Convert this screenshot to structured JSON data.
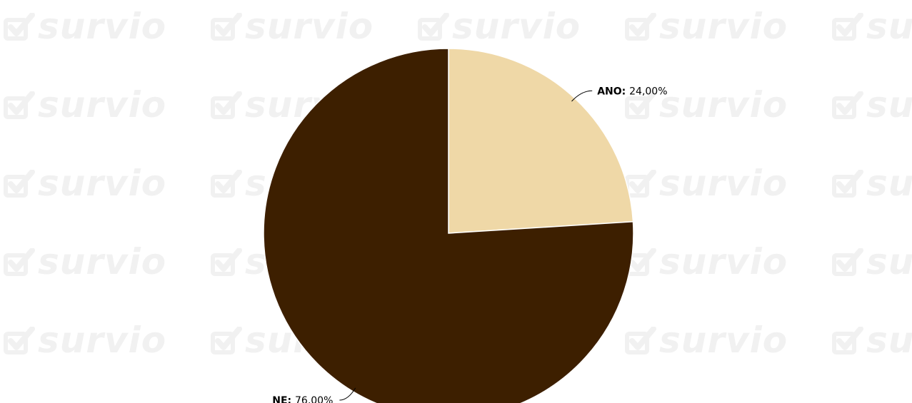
{
  "watermark": {
    "text": "survio",
    "icon": "checkbox-check-icon",
    "color": "#f1f1f1"
  },
  "chart_data": {
    "type": "pie",
    "start_angle": "12 o'clock, clockwise",
    "slices": [
      {
        "label": "ANO",
        "value": 24.0,
        "display": "24,00%",
        "color": "#efd8a7"
      },
      {
        "label": "NE",
        "value": 76.0,
        "display": "76,00%",
        "color": "#3d1f00"
      }
    ],
    "label_separator": ": ",
    "slice_border_color": "#ffffff"
  }
}
